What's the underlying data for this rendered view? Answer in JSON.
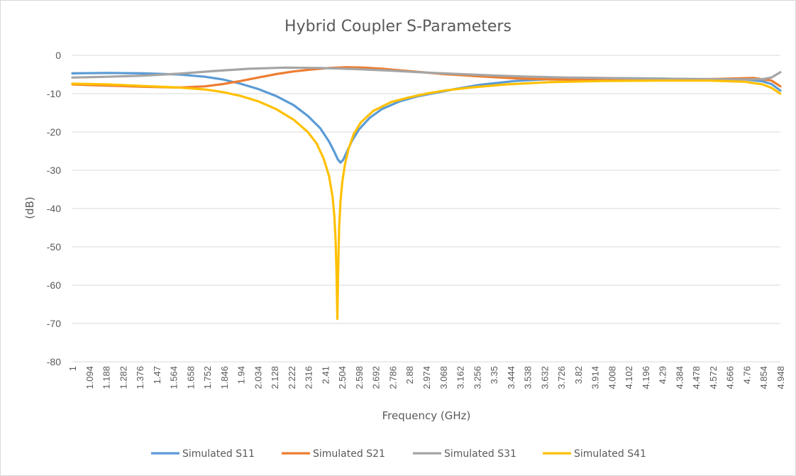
{
  "chart_data": {
    "type": "line",
    "title": "Hybrid Coupler S-Parameters",
    "xlabel": "Frequency (GHz)",
    "ylabel": "(dB)",
    "x_range": [
      1,
      5
    ],
    "ylim": [
      -80,
      0
    ],
    "y_ticks": [
      0,
      -10,
      -20,
      -30,
      -40,
      -50,
      -60,
      -70,
      -80
    ],
    "x_tick_labels": [
      "1",
      "1.094",
      "1.188",
      "1.282",
      "1.376",
      "1.47",
      "1.564",
      "1.658",
      "1.752",
      "1.846",
      "1.94",
      "2.034",
      "2.128",
      "2.222",
      "2.316",
      "2.41",
      "2.504",
      "2.598",
      "2.692",
      "2.786",
      "2.88",
      "2.974",
      "3.068",
      "3.162",
      "3.256",
      "3.35",
      "3.444",
      "3.538",
      "3.632",
      "3.726",
      "3.82",
      "3.914",
      "4.008",
      "4.102",
      "4.196",
      "4.29",
      "4.384",
      "4.478",
      "4.572",
      "4.666",
      "4.76",
      "4.854",
      "4.948"
    ],
    "grid": true,
    "legend_position": "bottom",
    "series": [
      {
        "name": "Simulated S11",
        "color": "#5b9bd5",
        "points": [
          [
            1,
            -4.7
          ],
          [
            1.2,
            -4.6
          ],
          [
            1.4,
            -4.7
          ],
          [
            1.6,
            -5.0
          ],
          [
            1.75,
            -5.6
          ],
          [
            1.85,
            -6.3
          ],
          [
            1.95,
            -7.4
          ],
          [
            2.05,
            -8.8
          ],
          [
            2.15,
            -10.6
          ],
          [
            2.25,
            -13.0
          ],
          [
            2.33,
            -15.8
          ],
          [
            2.4,
            -19.0
          ],
          [
            2.45,
            -22.5
          ],
          [
            2.48,
            -25.2
          ],
          [
            2.5,
            -27.2
          ],
          [
            2.515,
            -28.0
          ],
          [
            2.53,
            -27.3
          ],
          [
            2.55,
            -25.3
          ],
          [
            2.58,
            -22.3
          ],
          [
            2.62,
            -19.3
          ],
          [
            2.68,
            -16.3
          ],
          [
            2.75,
            -14.0
          ],
          [
            2.85,
            -12.0
          ],
          [
            2.95,
            -10.7
          ],
          [
            3.05,
            -9.8
          ],
          [
            3.15,
            -8.9
          ],
          [
            3.3,
            -7.7
          ],
          [
            3.5,
            -6.7
          ],
          [
            3.7,
            -6.2
          ],
          [
            3.9,
            -6.0
          ],
          [
            4.2,
            -6.0
          ],
          [
            4.5,
            -6.2
          ],
          [
            4.8,
            -6.3
          ],
          [
            4.9,
            -6.8
          ],
          [
            4.95,
            -7.5
          ],
          [
            5.0,
            -9.2
          ]
        ]
      },
      {
        "name": "Simulated S21",
        "color": "#ed7d31",
        "points": [
          [
            1,
            -7.6
          ],
          [
            1.2,
            -7.9
          ],
          [
            1.4,
            -8.2
          ],
          [
            1.6,
            -8.4
          ],
          [
            1.75,
            -8.1
          ],
          [
            1.85,
            -7.5
          ],
          [
            1.95,
            -6.7
          ],
          [
            2.05,
            -5.8
          ],
          [
            2.15,
            -4.9
          ],
          [
            2.25,
            -4.2
          ],
          [
            2.35,
            -3.7
          ],
          [
            2.45,
            -3.3
          ],
          [
            2.55,
            -3.1
          ],
          [
            2.65,
            -3.2
          ],
          [
            2.75,
            -3.5
          ],
          [
            2.85,
            -3.9
          ],
          [
            2.95,
            -4.3
          ],
          [
            3.1,
            -4.9
          ],
          [
            3.3,
            -5.5
          ],
          [
            3.5,
            -6.0
          ],
          [
            3.7,
            -6.3
          ],
          [
            3.9,
            -6.4
          ],
          [
            4.2,
            -6.4
          ],
          [
            4.5,
            -6.3
          ],
          [
            4.7,
            -6.1
          ],
          [
            4.85,
            -5.9
          ],
          [
            4.95,
            -6.6
          ],
          [
            5.0,
            -8.1
          ]
        ]
      },
      {
        "name": "Simulated S31",
        "color": "#a5a5a5",
        "points": [
          [
            1,
            -5.8
          ],
          [
            1.2,
            -5.6
          ],
          [
            1.4,
            -5.3
          ],
          [
            1.6,
            -4.8
          ],
          [
            1.8,
            -4.1
          ],
          [
            2.0,
            -3.5
          ],
          [
            2.2,
            -3.2
          ],
          [
            2.4,
            -3.3
          ],
          [
            2.6,
            -3.6
          ],
          [
            2.8,
            -4.0
          ],
          [
            3.0,
            -4.5
          ],
          [
            3.2,
            -4.9
          ],
          [
            3.4,
            -5.3
          ],
          [
            3.6,
            -5.6
          ],
          [
            3.8,
            -5.8
          ],
          [
            4.0,
            -5.9
          ],
          [
            4.3,
            -6.1
          ],
          [
            4.6,
            -6.2
          ],
          [
            4.8,
            -6.3
          ],
          [
            4.9,
            -6.2
          ],
          [
            4.95,
            -5.8
          ],
          [
            5.0,
            -4.4
          ]
        ]
      },
      {
        "name": "Simulated S41",
        "color": "#ffc000",
        "points": [
          [
            1,
            -7.4
          ],
          [
            1.2,
            -7.6
          ],
          [
            1.4,
            -8.0
          ],
          [
            1.6,
            -8.4
          ],
          [
            1.75,
            -8.9
          ],
          [
            1.85,
            -9.6
          ],
          [
            1.95,
            -10.6
          ],
          [
            2.05,
            -12.0
          ],
          [
            2.15,
            -14.0
          ],
          [
            2.25,
            -16.8
          ],
          [
            2.33,
            -20.0
          ],
          [
            2.38,
            -23.0
          ],
          [
            2.42,
            -27.0
          ],
          [
            2.45,
            -31.5
          ],
          [
            2.47,
            -37.0
          ],
          [
            2.48,
            -42.0
          ],
          [
            2.487,
            -48.0
          ],
          [
            2.493,
            -58.0
          ],
          [
            2.497,
            -68.8
          ],
          [
            2.501,
            -58.0
          ],
          [
            2.507,
            -45.0
          ],
          [
            2.515,
            -38.0
          ],
          [
            2.525,
            -33.0
          ],
          [
            2.54,
            -28.5
          ],
          [
            2.56,
            -24.5
          ],
          [
            2.59,
            -20.5
          ],
          [
            2.63,
            -17.5
          ],
          [
            2.7,
            -14.5
          ],
          [
            2.8,
            -12.2
          ],
          [
            2.9,
            -11.0
          ],
          [
            3.0,
            -10.0
          ],
          [
            3.1,
            -9.2
          ],
          [
            3.25,
            -8.4
          ],
          [
            3.45,
            -7.6
          ],
          [
            3.7,
            -7.0
          ],
          [
            4.0,
            -6.7
          ],
          [
            4.3,
            -6.6
          ],
          [
            4.6,
            -6.6
          ],
          [
            4.8,
            -6.9
          ],
          [
            4.9,
            -7.6
          ],
          [
            4.95,
            -8.5
          ],
          [
            5.0,
            -10.0
          ]
        ]
      }
    ]
  }
}
